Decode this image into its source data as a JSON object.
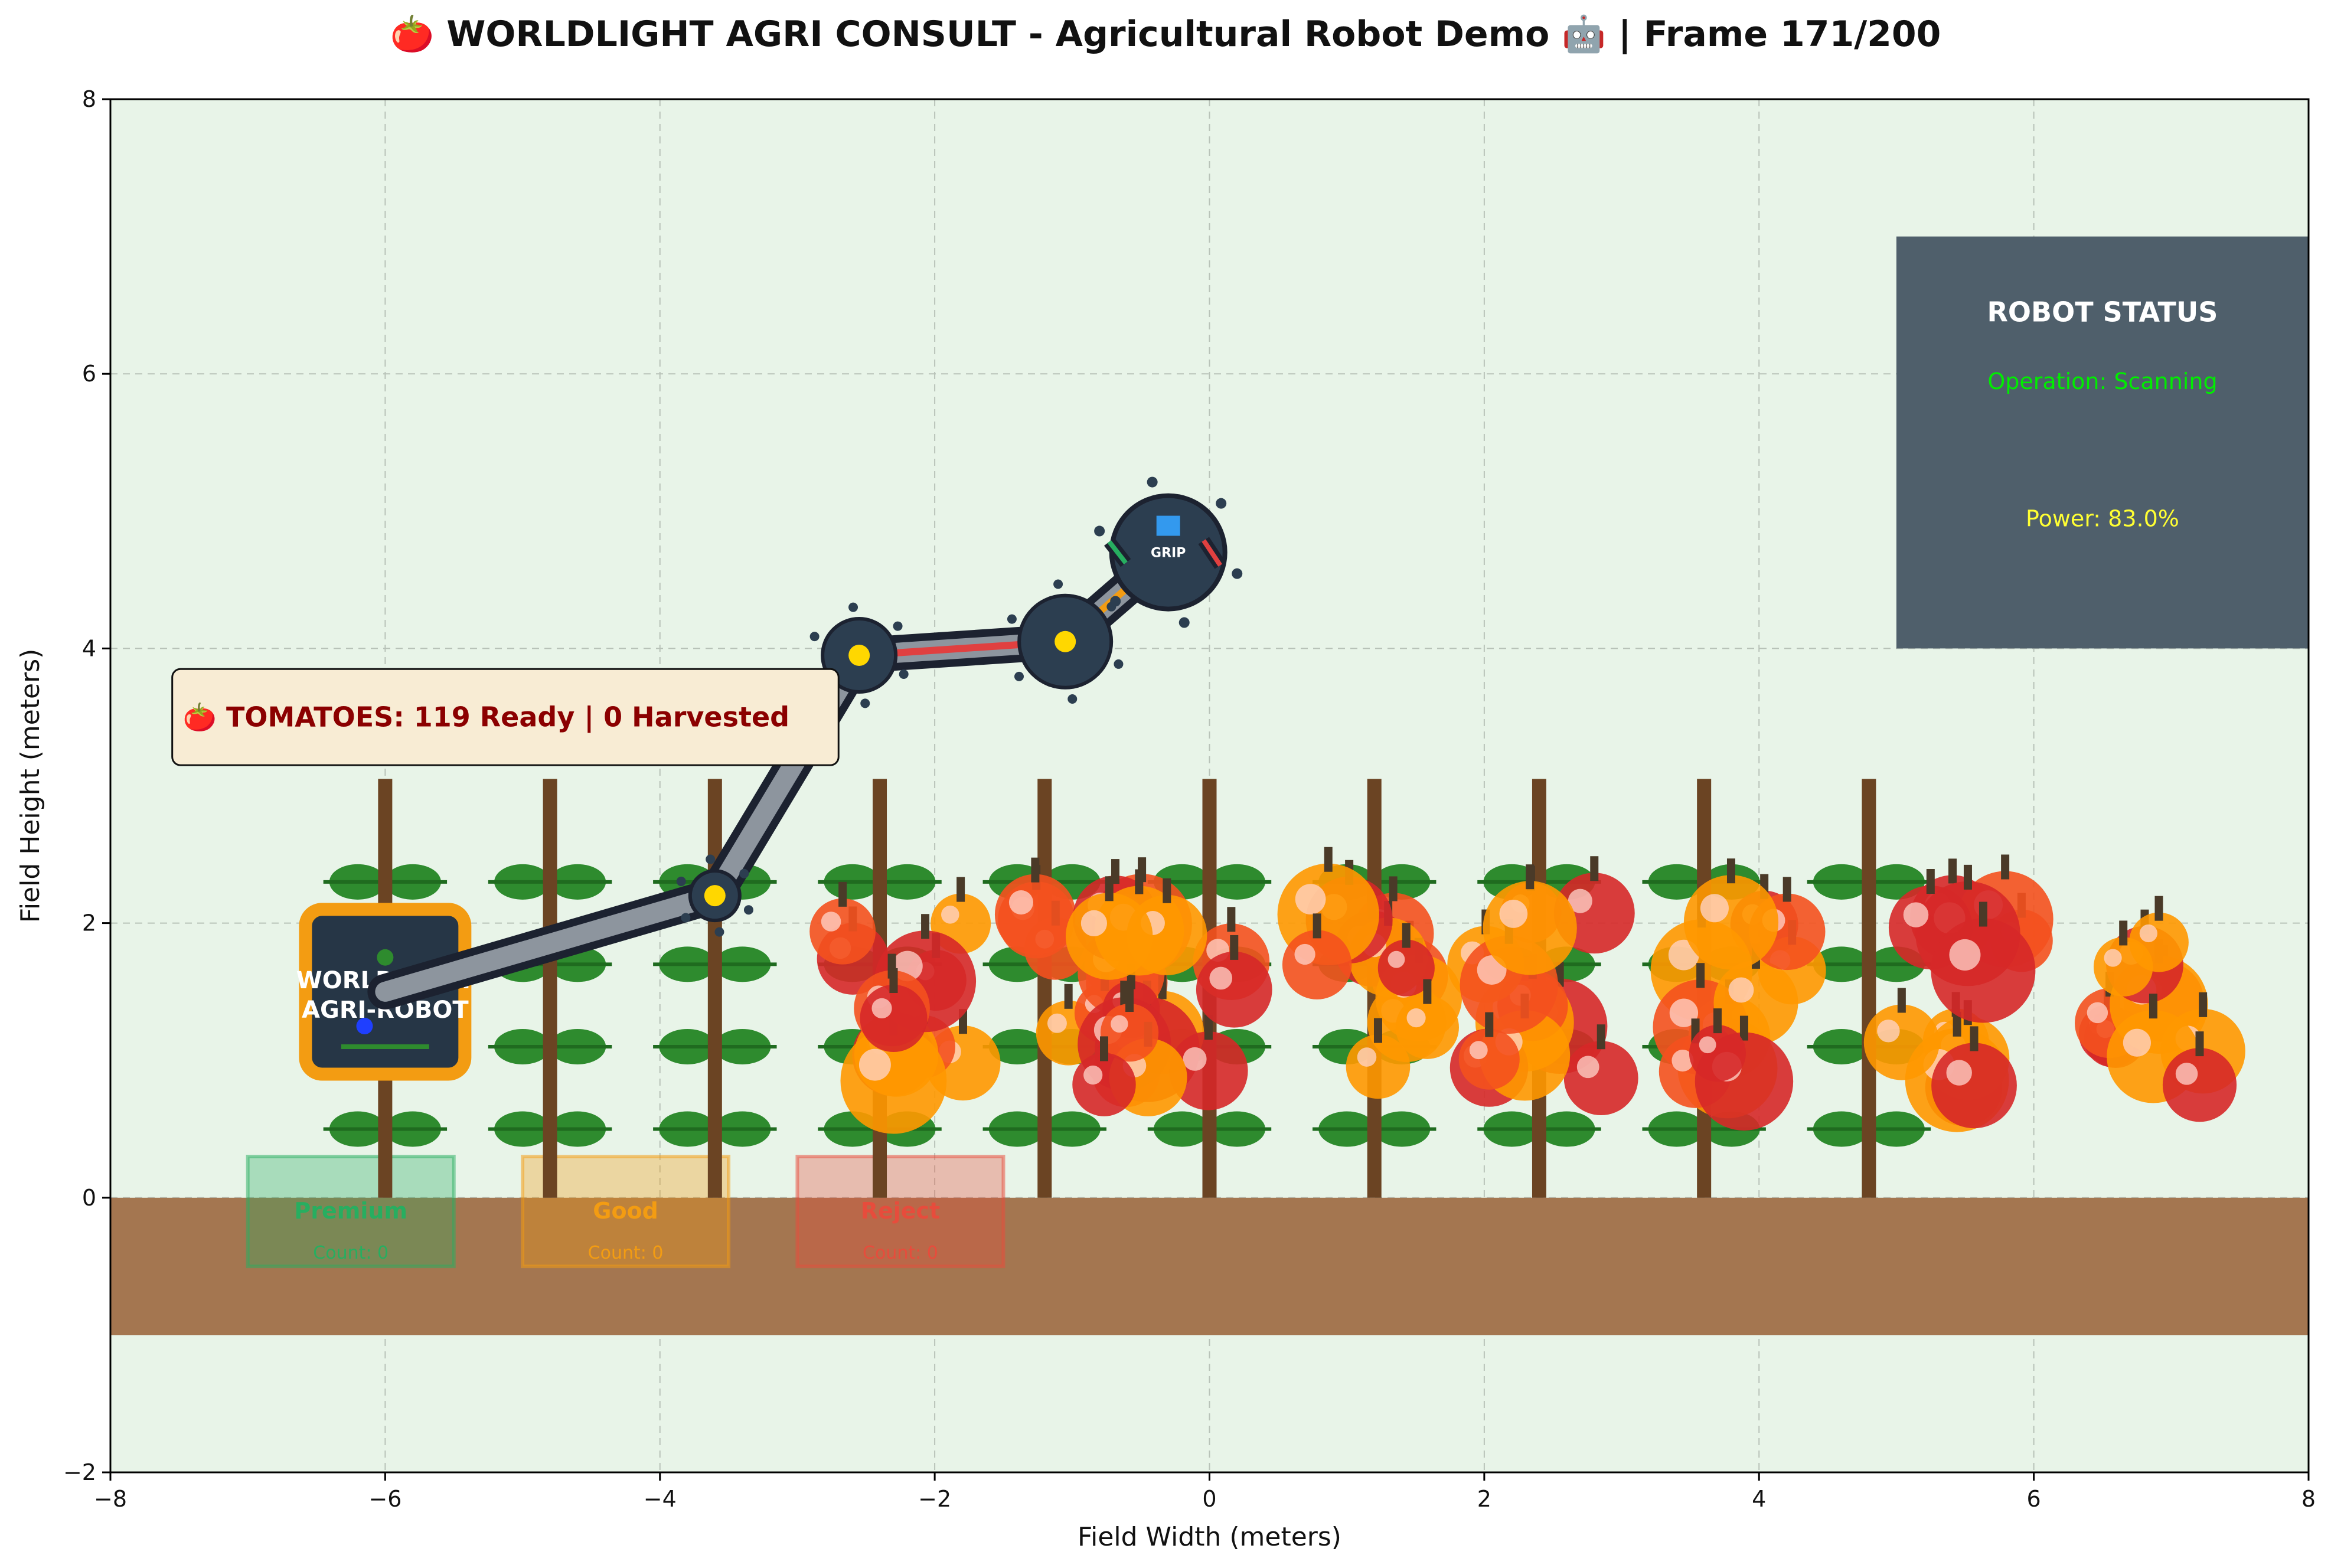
{
  "title": "🍅 WORLDLIGHT AGRI CONSULT - Agricultural Robot Demo 🤖 | Frame 171/200",
  "axes": {
    "xlabel": "Field Width (meters)",
    "ylabel": "Field Height (meters)",
    "xlim": [
      -8,
      8
    ],
    "ylim": [
      -2,
      8
    ],
    "xticks": [
      "−8",
      "−6",
      "−4",
      "−2",
      "0",
      "2",
      "4",
      "6",
      "8"
    ],
    "yticks": [
      "−2",
      "0",
      "2",
      "4",
      "6",
      "8"
    ],
    "grid": true
  },
  "colors": {
    "field_bg": "#e8f4e8",
    "soil": "#a47650",
    "stake": "#6b4423",
    "leaf": "#2e8b2e",
    "tomato_red": "#d62828",
    "tomato_orange": "#ff9800",
    "tomato_redorange": "#f4511e",
    "arm_dark": "#1c2230",
    "arm_grey": "#8d959e",
    "robot_body": "#263646",
    "robot_border": "#f39c12",
    "status_panel": "#4f5f6b"
  },
  "robot": {
    "label_line1": "WORLDLIGHT",
    "label_line2": "AGRI-ROBOT",
    "base_x": -6.0,
    "base_y": 1.5,
    "joints": [
      [
        -6.0,
        1.5
      ],
      [
        -3.6,
        2.2
      ],
      [
        -2.55,
        3.95
      ],
      [
        -1.05,
        4.05
      ],
      [
        -0.3,
        4.7
      ]
    ],
    "gripper_label": "GRIP"
  },
  "status_panel": {
    "title": "ROBOT STATUS",
    "operation": "Operation: Scanning",
    "operation_color": "#00ee00",
    "power": "Power: 83.0%",
    "power_color": "#ffff33"
  },
  "banner": {
    "text": "🍅 TOMATOES: 119 Ready | 0 Harvested"
  },
  "bins": [
    {
      "name": "Premium",
      "count": "Count: 0",
      "color": "#27ae60",
      "x0": -7.0
    },
    {
      "name": "Good",
      "count": "Count: 0",
      "color": "#f39c12",
      "x0": -5.0
    },
    {
      "name": "Reject",
      "count": "Count: 0",
      "color": "#e74c3c",
      "x0": -3.0
    }
  ],
  "plants": {
    "stake_x": [
      -6.0,
      -4.8,
      -3.6,
      -2.4,
      -1.2,
      0.0,
      1.2,
      2.4,
      3.6,
      4.8
    ],
    "leaf_y": [
      0.5,
      1.1,
      1.7,
      2.3
    ]
  }
}
